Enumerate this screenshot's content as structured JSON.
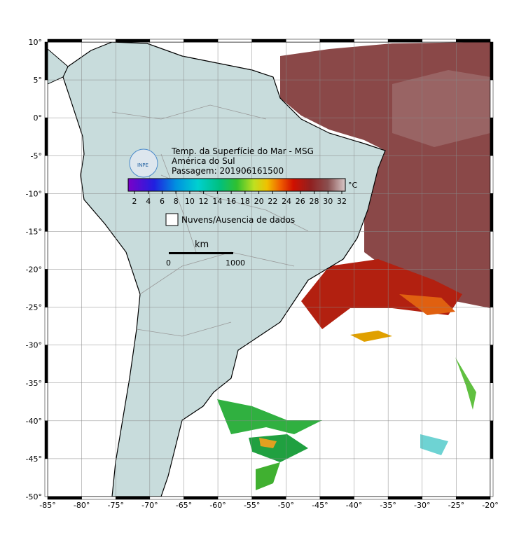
{
  "map": {
    "title": "Temp. da Superfície do Mar - MSG",
    "region": "América do Sul",
    "pass": "Passagem: 201906161500",
    "logo": "INPE",
    "colorbar": {
      "unit": "°C",
      "ticks": [
        2,
        4,
        6,
        8,
        10,
        12,
        14,
        16,
        18,
        20,
        22,
        24,
        26,
        28,
        30,
        32
      ]
    },
    "legend": "Nuvens/Ausencia de dados",
    "scale": {
      "unit": "km",
      "start": "0",
      "end": "1000"
    },
    "lon_ticks": [
      {
        "value": -85,
        "label": "-85°"
      },
      {
        "value": -80,
        "label": "-80°"
      },
      {
        "value": -75,
        "label": "-75°"
      },
      {
        "value": -70,
        "label": "-70°"
      },
      {
        "value": -65,
        "label": "-65°"
      },
      {
        "value": -60,
        "label": "-60°"
      },
      {
        "value": -55,
        "label": "-55°"
      },
      {
        "value": -50,
        "label": "-50°"
      },
      {
        "value": -45,
        "label": "-45°"
      },
      {
        "value": -40,
        "label": "-40°"
      },
      {
        "value": -35,
        "label": "-35°"
      },
      {
        "value": -30,
        "label": "-30°"
      },
      {
        "value": -25,
        "label": "-25°"
      },
      {
        "value": -20,
        "label": "-20°"
      }
    ],
    "lat_ticks": [
      {
        "value": 10,
        "label": "10°"
      },
      {
        "value": 5,
        "label": "5°"
      },
      {
        "value": 0,
        "label": "0°"
      },
      {
        "value": -5,
        "label": "-5°"
      },
      {
        "value": -10,
        "label": "-10°"
      },
      {
        "value": -15,
        "label": "-15°"
      },
      {
        "value": -20,
        "label": "-20°"
      },
      {
        "value": -25,
        "label": "-25°"
      },
      {
        "value": -30,
        "label": "-30°"
      },
      {
        "value": -35,
        "label": "-35°"
      },
      {
        "value": -40,
        "label": "-40°"
      },
      {
        "value": -45,
        "label": "-45°"
      },
      {
        "value": -50,
        "label": "-50°"
      }
    ]
  }
}
